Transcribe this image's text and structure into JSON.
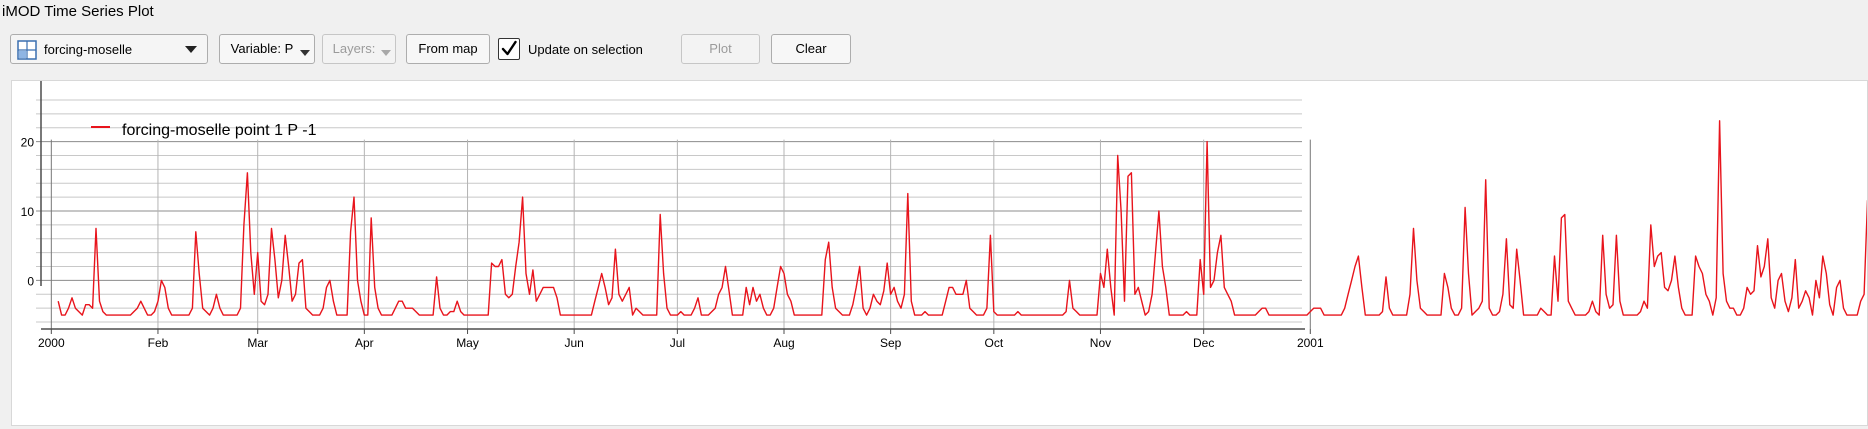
{
  "window": {
    "title": "iMOD Time Series Plot"
  },
  "toolbar": {
    "layer_combo": {
      "value": "forcing-moselle",
      "icon": "layer-grid-icon"
    },
    "variable_button": "Variable: P",
    "layers_button": "Layers:",
    "from_map_button": "From map",
    "update_checkbox": {
      "label": "Update on selection",
      "checked": true
    },
    "plot_button": "Plot",
    "clear_button": "Clear"
  },
  "colors": {
    "series": "#e8141c",
    "grid": "#c8c8c8",
    "axis": "#4d4d4d"
  },
  "chart_data": {
    "type": "line",
    "title": "",
    "xlabel": "",
    "ylabel": "",
    "ylim": [
      -7,
      27
    ],
    "yticks": [
      0,
      10,
      20
    ],
    "xlim": [
      "1999-12-29",
      "2001-03-05"
    ],
    "x_tick_labels": [
      {
        "date": "2000-01-01",
        "label": "2000"
      },
      {
        "date": "2000-02-01",
        "label": "Feb"
      },
      {
        "date": "2000-03-01",
        "label": "Mar"
      },
      {
        "date": "2000-04-01",
        "label": "Apr"
      },
      {
        "date": "2000-05-01",
        "label": "May"
      },
      {
        "date": "2000-06-01",
        "label": "Jun"
      },
      {
        "date": "2000-07-01",
        "label": "Jul"
      },
      {
        "date": "2000-08-01",
        "label": "Aug"
      },
      {
        "date": "2000-09-01",
        "label": "Sep"
      },
      {
        "date": "2000-10-01",
        "label": "Oct"
      },
      {
        "date": "2000-11-01",
        "label": "Nov"
      },
      {
        "date": "2000-12-01",
        "label": "Dec"
      },
      {
        "date": "2001-01-01",
        "label": "2001"
      }
    ],
    "grid": true,
    "legend_position": "top-left",
    "series": [
      {
        "name": "forcing-moselle point 1 P -1",
        "x_start": "2000-01-03",
        "x_step_days": 1,
        "values": [
          -3,
          -5,
          -5,
          -4,
          -2.5,
          -4,
          -4.5,
          -5,
          -3.5,
          -3.5,
          -4,
          7.5,
          -3,
          -4.5,
          -5,
          -5,
          -5,
          -5,
          -5,
          -5,
          -5,
          -5,
          -4.5,
          -4,
          -3,
          -4,
          -5,
          -5,
          -4.5,
          -3,
          0,
          -1,
          -4,
          -5,
          -5,
          -5,
          -5,
          -5,
          -5,
          -4,
          7,
          1,
          -4,
          -4.5,
          -5,
          -4,
          -2,
          -4,
          -5,
          -5,
          -5,
          -5,
          -5,
          -4,
          8,
          15.5,
          4,
          -2,
          4,
          -3,
          -3.5,
          -2,
          7.5,
          3,
          -2.5,
          0,
          6.5,
          2,
          -3,
          -2,
          2.5,
          3,
          -4,
          -4.5,
          -5,
          -5,
          -5,
          -4,
          -1,
          0,
          -3,
          -5,
          -5,
          -5,
          -5,
          7,
          12,
          0,
          -3,
          -5,
          -5,
          9,
          -1,
          -4,
          -5,
          -5,
          -5,
          -5,
          -4,
          -3,
          -3,
          -4,
          -4,
          -4,
          -4.5,
          -5,
          -5,
          -5,
          -5,
          -5,
          0.5,
          -4,
          -5,
          -5,
          -4.5,
          -4.5,
          -3,
          -4.5,
          -5,
          -5,
          -5,
          -5,
          -5,
          -5,
          -5,
          -5,
          2.5,
          2,
          2,
          3,
          -2,
          -2.5,
          -2,
          2,
          5.5,
          12,
          1,
          -2,
          1.5,
          -3,
          -2,
          -1,
          -1,
          -1,
          -1,
          -2.5,
          -5,
          -5,
          -5,
          -5,
          -5,
          -5,
          -5,
          -5,
          -5,
          -5,
          -3,
          -1,
          1,
          -1,
          -3.5,
          -2.5,
          4.5,
          -2,
          -3,
          -2,
          -1,
          -5,
          -4,
          -4.5,
          -5,
          -5,
          -5,
          -5,
          -5,
          9.5,
          1,
          -4,
          -5,
          -5,
          -5,
          -4.5,
          -5,
          -5,
          -5,
          -4,
          -2.5,
          -5,
          -5,
          -5,
          -4.5,
          -4,
          -2,
          -1,
          2,
          -1.5,
          -5,
          -5,
          -5,
          -5,
          -1,
          -3.5,
          -1,
          -3,
          -2,
          -4,
          -5,
          -5,
          -4,
          -1,
          2,
          1,
          -2,
          -3,
          -5,
          -5,
          -5,
          -5,
          -5,
          -5,
          -5,
          -5,
          -5,
          3,
          5.5,
          -1,
          -4,
          -4.5,
          -5,
          -5,
          -5,
          -3.5,
          -1,
          2,
          -4,
          -5,
          -4,
          -2,
          -3,
          -3.5,
          -1.5,
          2.5,
          -2,
          -1,
          -3,
          -4,
          -2,
          12.5,
          -3,
          -5,
          -5,
          -5,
          -4.5,
          -5,
          -5,
          -5,
          -5,
          -5,
          -3,
          -1,
          -1,
          -2,
          -2,
          -2,
          0,
          -4,
          -4.5,
          -5,
          -5,
          -5,
          -4,
          6.5,
          -4.5,
          -5,
          -5,
          -5,
          -5,
          -5,
          -5,
          -4.5,
          -5,
          -5,
          -5,
          -5,
          -5,
          -5,
          -5,
          -5,
          -5,
          -5,
          -5,
          -5,
          -5,
          -4.5,
          0,
          -4,
          -4.5,
          -5,
          -5,
          -5,
          -5,
          -5,
          -5,
          1,
          -1,
          4.5,
          -1,
          -5,
          18,
          10,
          -3,
          15,
          15.5,
          -2,
          -1,
          -3,
          -5,
          -4.5,
          -2,
          4,
          10,
          2,
          -1,
          -5,
          -5,
          -5,
          -5,
          -5,
          -4.5,
          -5,
          -5,
          -5,
          3,
          -2,
          20,
          -1,
          0,
          4,
          6.5,
          -1,
          -2,
          -3,
          -5,
          -5,
          -5,
          -5,
          -5,
          -5,
          -5,
          -4.5,
          -4,
          -4,
          -5,
          -5,
          -5,
          -5,
          -5,
          -5,
          -5,
          -5,
          -5,
          -5,
          -5,
          -5,
          -4.5,
          -4,
          -4,
          -4,
          -5,
          -5,
          -5,
          -5,
          -5,
          -5,
          -4,
          -2,
          0,
          2,
          3.5,
          -1,
          -5,
          -5,
          -5,
          -5,
          -5,
          -4.5,
          0.5,
          -4,
          -5,
          -5,
          -5,
          -5,
          -5,
          -2,
          7.5,
          0,
          -4,
          -4.5,
          -5,
          -5,
          -5,
          -5,
          -5,
          1,
          -1,
          -4,
          -5,
          -5,
          -4,
          10.5,
          1,
          -5,
          -4.5,
          -4,
          -3,
          14.5,
          -4,
          -5,
          -5,
          -4.5,
          -2,
          6,
          -3.5,
          -4,
          4.5,
          0,
          -5,
          -5,
          -5,
          -5,
          -5,
          -4,
          -4.5,
          -5,
          -5,
          3.5,
          -3,
          9,
          9.5,
          -3,
          -4,
          -5,
          -5,
          -5,
          -5,
          -4.5,
          -3,
          -4.5,
          -5,
          6.5,
          -2,
          -4,
          -3.5,
          6.5,
          -3,
          -5,
          -5,
          -5,
          -5,
          -5,
          -4.5,
          -3,
          -4,
          8,
          2,
          3.5,
          4,
          -1,
          -1.5,
          0,
          3.5,
          -1,
          -4,
          -5,
          -5,
          -5,
          3.5,
          2,
          1,
          -2,
          -3,
          -5,
          -2.5,
          23,
          1,
          -3,
          -4,
          -4,
          -5,
          -5,
          -4,
          -1,
          -2,
          -1.5,
          5,
          0.5,
          2,
          6,
          -2.5,
          -4,
          0,
          1,
          -3,
          -4.5,
          -2.5,
          3,
          -4,
          -3,
          -1.5,
          -2.5,
          -5,
          0,
          -2.5,
          3.5,
          1,
          -3.5,
          -5,
          -1,
          0,
          -4,
          -5,
          -5,
          -5,
          -5,
          -3,
          -2,
          11.5,
          -1,
          -3,
          -3.5,
          -3,
          -1,
          1,
          -4,
          -5,
          -5,
          -5,
          -5,
          -5,
          -5,
          0.5,
          0,
          -2,
          1.5,
          5.5,
          3,
          -1,
          -3.5,
          -2,
          -2,
          -3,
          -5
        ]
      }
    ]
  }
}
